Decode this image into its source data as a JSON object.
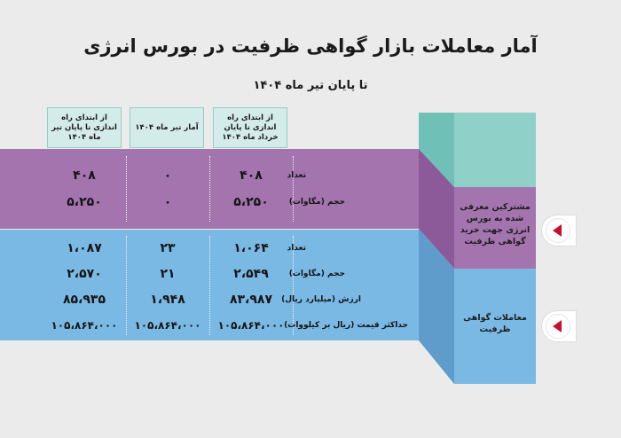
{
  "title": "آمار معاملات بازار گواهی ظرفیت در بورس انرژی",
  "subtitle": "تا پایان تیر ماه ۱۴۰۴",
  "columns": {
    "since_start_tir": "از ابتدای راه اندازی تا پایان تیر ماه ۱۴۰۴",
    "tir": "آمار تیر ماه ۱۴۰۴",
    "since_start_khordad": "از ابتدای راه اندازی تا پایان خرداد ماه ۱۴۰۴"
  },
  "sections": {
    "subscribers": {
      "label": "مشترکین معرفی شده به بورس انرژی جهت خرید گواهی ظرفیت",
      "rows": [
        {
          "label": "تعداد",
          "since_start_tir": "۴۰۸",
          "tir": "۰",
          "since_start_khordad": "۴۰۸"
        },
        {
          "label": "حجم (مگاوات)",
          "since_start_tir": "۵،۲۵۰",
          "tir": "۰",
          "since_start_khordad": "۵،۲۵۰"
        }
      ]
    },
    "trades": {
      "label": "معاملات گواهی ظرفیت",
      "rows": [
        {
          "label": "تعداد",
          "since_start_tir": "۱،۰۸۷",
          "tir": "۲۳",
          "since_start_khordad": "۱،۰۶۴"
        },
        {
          "label": "حجم (مگاوات)",
          "since_start_tir": "۲،۵۷۰",
          "tir": "۲۱",
          "since_start_khordad": "۲،۵۴۹"
        },
        {
          "label": "ارزش (میلیارد ریال)",
          "since_start_tir": "۸۵،۹۳۵",
          "tir": "۱،۹۴۸",
          "since_start_khordad": "۸۳،۹۸۷"
        },
        {
          "label": "حداکثر قیمت (ریال بر کیلووات)",
          "since_start_tir": "۱۰۵،۸۶۴،۰۰۰",
          "tir": "۱۰۵،۸۶۴،۰۰۰",
          "since_start_khordad": "۱۰۵،۸۶۴،۰۰۰"
        }
      ]
    }
  },
  "colors": {
    "teal": "#8fd0c8",
    "purple": "#a374ae",
    "blue": "#7bb9e5",
    "accent": "#c8102e"
  },
  "icons": [
    "left-arrow-icon"
  ]
}
